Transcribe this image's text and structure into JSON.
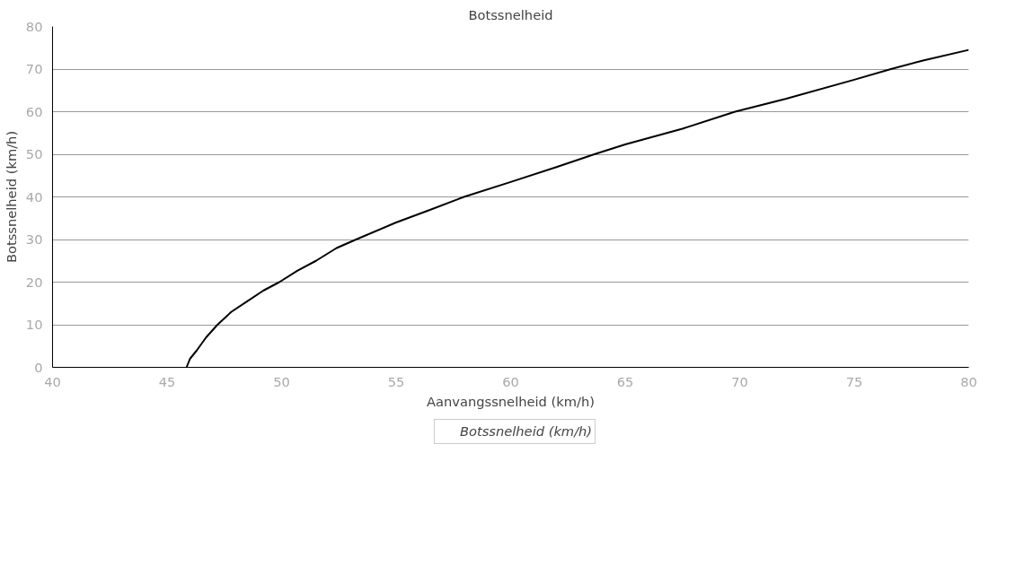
{
  "chart_data": {
    "type": "line",
    "title": "Botssnelheid",
    "xlabel": "Aanvangssnelheid (km/h)",
    "ylabel": "Botssnelheid (km/h)",
    "series": [
      {
        "name": "Botssnelheid (km/h)",
        "color": "#000000",
        "x": [
          45.85,
          46,
          46.3,
          46.7,
          47.2,
          47.8,
          48.5,
          49.2,
          49.9,
          50.7,
          51.5,
          52.4,
          53.25,
          55,
          56.5,
          57.96,
          60,
          62,
          63.65,
          65,
          67.5,
          69.8,
          72,
          75,
          76.6,
          78,
          80
        ],
        "values": [
          0,
          2,
          4,
          7,
          10,
          13,
          15.5,
          18,
          20,
          22.7,
          25,
          28,
          30,
          34,
          37,
          40,
          43.5,
          47,
          50,
          52.3,
          56,
          60,
          63,
          67.5,
          70,
          72,
          74.5
        ]
      }
    ],
    "xlim": [
      40,
      80
    ],
    "xticks": [
      40,
      45,
      50,
      55,
      60,
      65,
      70,
      75,
      80
    ],
    "ylim": [
      0,
      80
    ],
    "yticks": [
      0,
      10,
      20,
      30,
      40,
      50,
      60,
      70,
      80
    ],
    "grid": "y",
    "legend": "bottom",
    "marker": "none",
    "line_style": "solid"
  }
}
